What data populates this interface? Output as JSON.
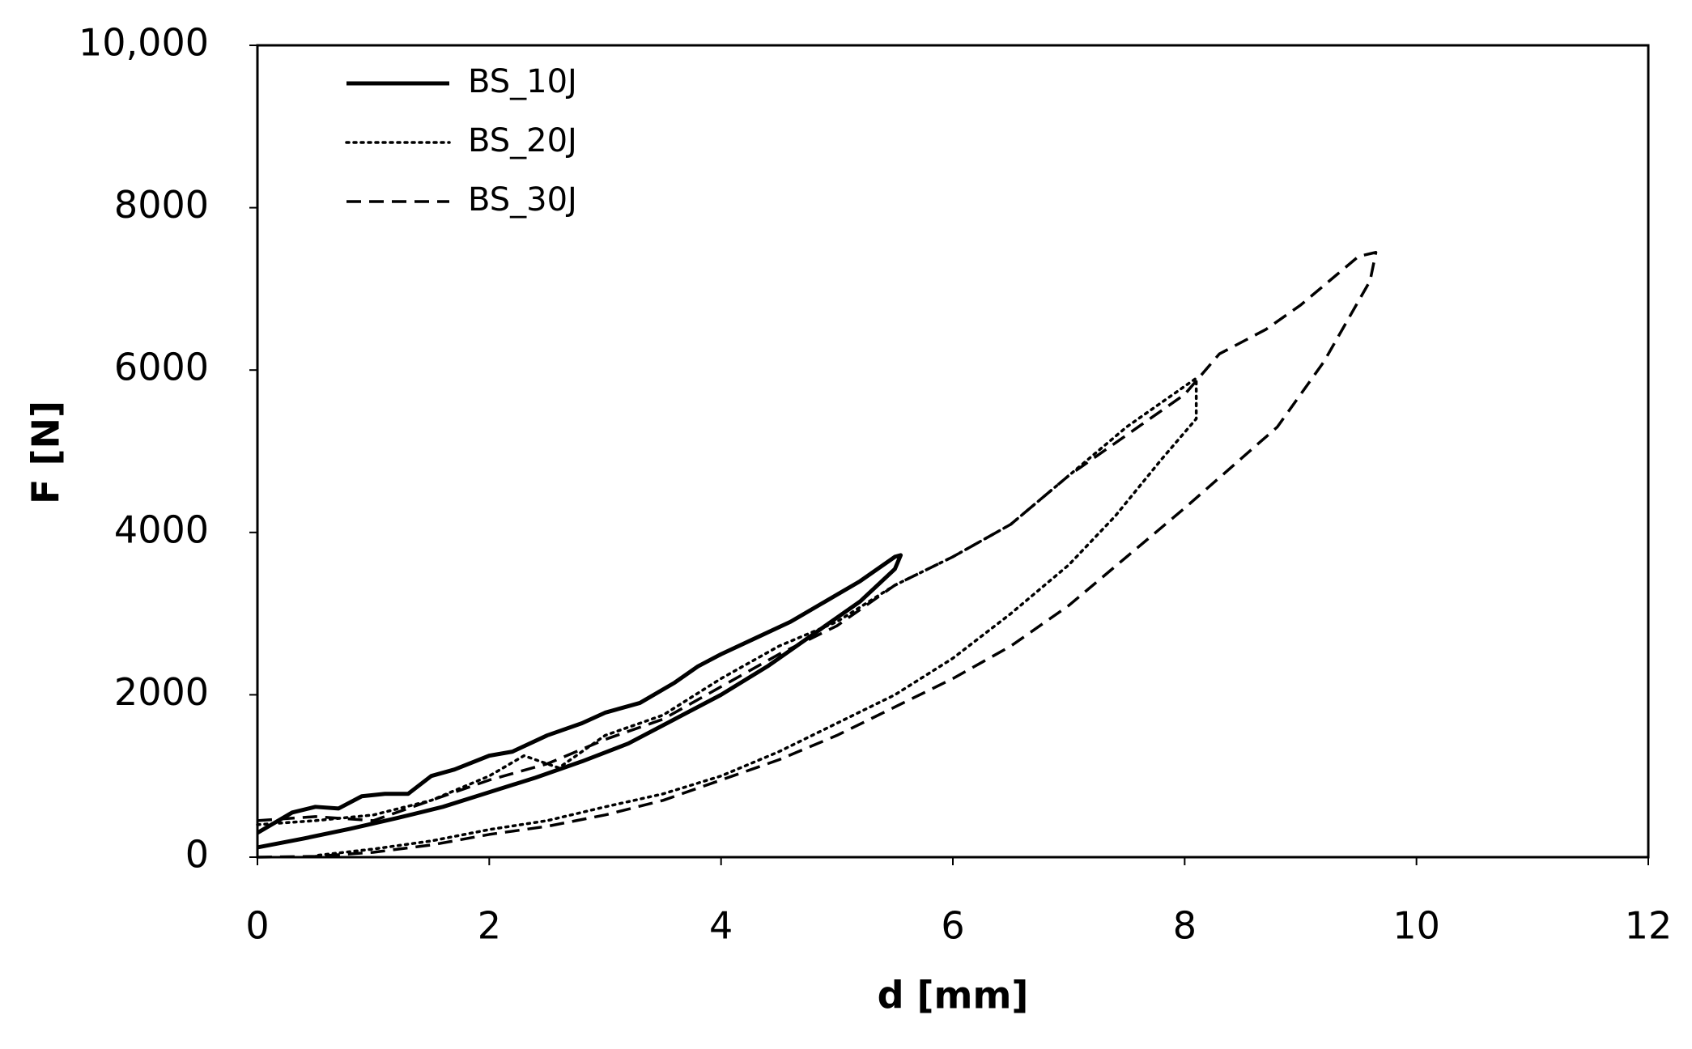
{
  "chart_data": {
    "type": "line",
    "xlabel": "d [mm]",
    "ylabel": "F [N]",
    "xlim": [
      0,
      12
    ],
    "xticks": [
      0,
      2,
      4,
      6,
      8,
      10,
      12
    ],
    "ylim": [
      0,
      10000
    ],
    "yticks": [
      0,
      2000,
      4000,
      6000,
      8000,
      {
        "value": 10000,
        "label": "10,000"
      }
    ],
    "grid": false,
    "legend": "upper left",
    "series": [
      {
        "name": "BS_10J",
        "color": "#000000",
        "style": "solid",
        "x": [
          0,
          0.3,
          0.5,
          0.7,
          0.9,
          1.1,
          1.3,
          1.5,
          1.7,
          2,
          2.2,
          2.5,
          2.8,
          3,
          3.3,
          3.6,
          3.8,
          4,
          4.3,
          4.6,
          4.9,
          5.2,
          5.5,
          5.55,
          5.5,
          5.2,
          4.8,
          4.4,
          4,
          3.6,
          3.2,
          2.8,
          2.4,
          2,
          1.6,
          1.2,
          0.8,
          0.4,
          0
        ],
        "values": [
          300,
          550,
          620,
          600,
          750,
          780,
          780,
          1000,
          1080,
          1250,
          1300,
          1500,
          1650,
          1780,
          1900,
          2150,
          2350,
          2500,
          2700,
          2900,
          3150,
          3400,
          3700,
          3720,
          3550,
          3150,
          2750,
          2350,
          2000,
          1700,
          1400,
          1180,
          980,
          800,
          620,
          480,
          350,
          230,
          120
        ]
      },
      {
        "name": "BS_20J",
        "color": "#000000",
        "style": "dotted",
        "x": [
          0,
          0.5,
          1,
          1.5,
          2,
          2.3,
          2.6,
          3,
          3.5,
          4,
          4.5,
          5,
          5.5,
          6,
          6.5,
          7,
          7.5,
          8,
          8.1,
          8.1,
          7.8,
          7.4,
          7,
          6.5,
          6,
          5.5,
          5,
          4.5,
          4,
          3.5,
          3,
          2.5,
          2,
          1.5,
          1,
          0.5
        ],
        "values": [
          400,
          450,
          520,
          700,
          1000,
          1250,
          1100,
          1500,
          1750,
          2200,
          2600,
          2900,
          3350,
          3700,
          4100,
          4700,
          5300,
          5800,
          5900,
          5400,
          4900,
          4200,
          3600,
          3000,
          2450,
          2000,
          1650,
          1300,
          1000,
          780,
          620,
          450,
          340,
          200,
          100,
          20
        ]
      },
      {
        "name": "BS_30J",
        "color": "#000000",
        "style": "dashed",
        "x": [
          0,
          0.5,
          1,
          1.5,
          2,
          2.5,
          3,
          3.5,
          4,
          4.5,
          5,
          5.5,
          6,
          6.5,
          7,
          7.5,
          8,
          8.3,
          8.7,
          9,
          9.5,
          9.65,
          9.6,
          9.2,
          8.8,
          8.4,
          8,
          7.5,
          7,
          6.5,
          6,
          5.5,
          5,
          4.5,
          4,
          3.5,
          3,
          2.5,
          2,
          1.5,
          1,
          0.5,
          0
        ],
        "values": [
          450,
          500,
          450,
          700,
          950,
          1150,
          1450,
          1700,
          2100,
          2500,
          2850,
          3350,
          3700,
          4100,
          4700,
          5200,
          5700,
          6200,
          6500,
          6800,
          7400,
          7450,
          7100,
          6100,
          5300,
          4800,
          4300,
          3700,
          3100,
          2600,
          2200,
          1850,
          1500,
          1200,
          950,
          700,
          520,
          380,
          280,
          150,
          60,
          10,
          0
        ]
      }
    ]
  }
}
